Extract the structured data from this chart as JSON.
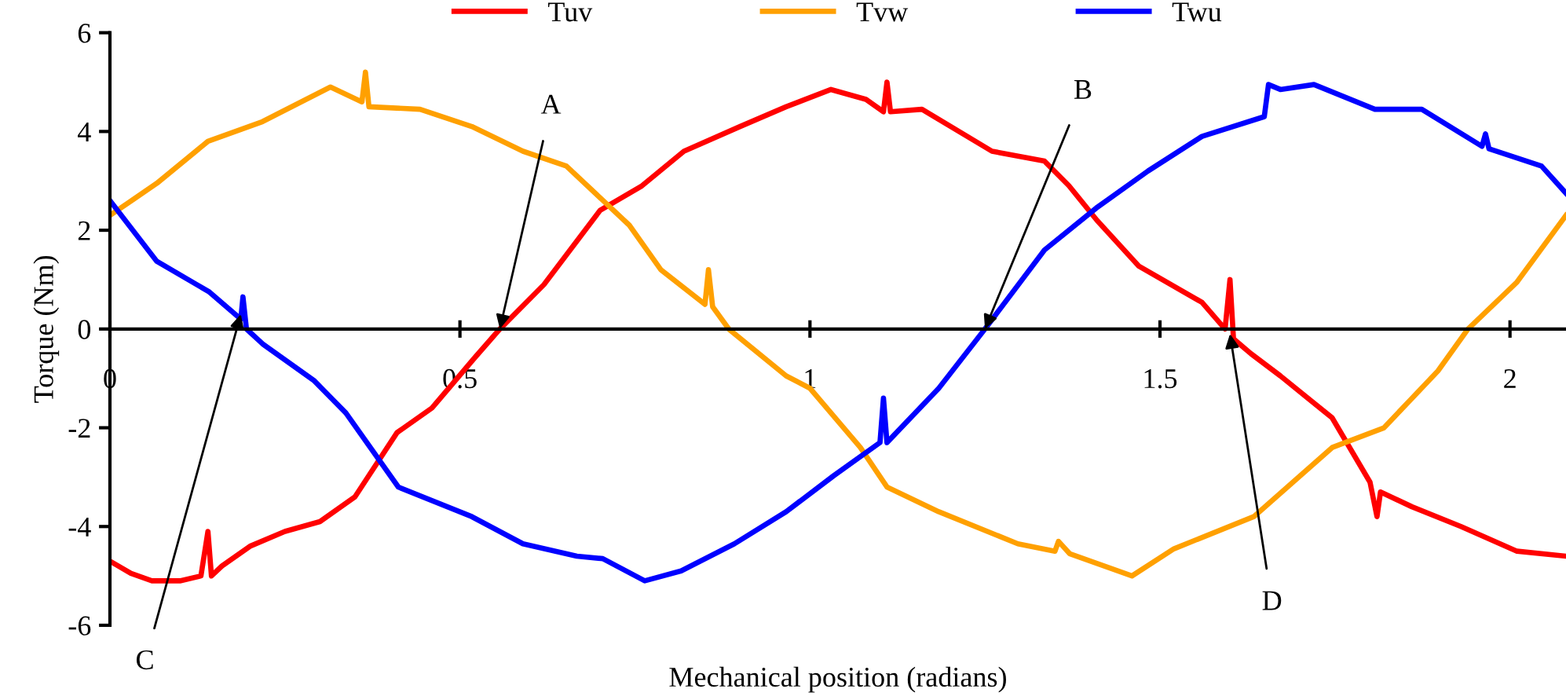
{
  "chart_data": {
    "type": "line",
    "xlabel": "Mechanical position (radians)",
    "ylabel": "Torque (Nm)",
    "xlim": [
      0,
      2.08
    ],
    "xticks": [
      0,
      0.5,
      1,
      1.5,
      2
    ],
    "ylim": [
      -6,
      6
    ],
    "yticks": [
      -6,
      -4,
      -2,
      0,
      2,
      4,
      6
    ],
    "grid": false,
    "legend": "top",
    "marker": "none",
    "line_style": "solid",
    "series": [
      {
        "name": "Tuv",
        "color": "#ff0000",
        "x": [
          0,
          0.03,
          0.06,
          0.1,
          0.13,
          0.14,
          0.145,
          0.16,
          0.2,
          0.25,
          0.3,
          0.35,
          0.41,
          0.46,
          0.52,
          0.557,
          0.62,
          0.7,
          0.76,
          0.82,
          0.9,
          0.966,
          1.03,
          1.08,
          1.105,
          1.11,
          1.115,
          1.16,
          1.26,
          1.335,
          1.37,
          1.41,
          1.47,
          1.56,
          1.593,
          1.6,
          1.605,
          1.63,
          1.672,
          1.746,
          1.8,
          1.81,
          1.815,
          1.86,
          1.93,
          2.01,
          2.08
        ],
        "values": [
          -4.7,
          -4.95,
          -5.1,
          -5.1,
          -5.0,
          -4.1,
          -5.0,
          -4.8,
          -4.4,
          -4.1,
          -3.9,
          -3.4,
          -2.1,
          -1.6,
          -0.6,
          0,
          0.9,
          2.4,
          2.9,
          3.6,
          4.1,
          4.5,
          4.85,
          4.65,
          4.4,
          5.0,
          4.4,
          4.45,
          3.6,
          3.4,
          2.9,
          2.2,
          1.27,
          0.54,
          0,
          1.0,
          -0.2,
          -0.5,
          -0.95,
          -1.8,
          -3.1,
          -3.8,
          -3.3,
          -3.6,
          -4.0,
          -4.5,
          -4.6
        ]
      },
      {
        "name": "Tvw",
        "color": "#ffa000",
        "x": [
          0,
          0.067,
          0.14,
          0.218,
          0.315,
          0.36,
          0.365,
          0.37,
          0.443,
          0.517,
          0.59,
          0.652,
          0.742,
          0.787,
          0.85,
          0.855,
          0.861,
          0.884,
          0.966,
          1.0,
          1.072,
          1.11,
          1.184,
          1.297,
          1.35,
          1.355,
          1.371,
          1.46,
          1.52,
          1.634,
          1.746,
          1.82,
          1.897,
          1.94,
          2.01,
          2.08
        ],
        "values": [
          2.3,
          2.95,
          3.8,
          4.2,
          4.9,
          4.6,
          5.2,
          4.5,
          4.45,
          4.1,
          3.6,
          3.3,
          2.1,
          1.2,
          0.5,
          1.2,
          0.45,
          0,
          -0.95,
          -1.2,
          -2.4,
          -3.2,
          -3.7,
          -4.35,
          -4.5,
          -4.3,
          -4.55,
          -5.0,
          -4.45,
          -3.8,
          -2.4,
          -2.0,
          -0.85,
          0,
          0.95,
          2.3
        ]
      },
      {
        "name": "Twu",
        "color": "#0000ff",
        "x": [
          0,
          0.067,
          0.142,
          0.187,
          0.19,
          0.195,
          0.218,
          0.292,
          0.337,
          0.412,
          0.517,
          0.59,
          0.667,
          0.704,
          0.764,
          0.816,
          0.892,
          0.966,
          1.034,
          1.1,
          1.105,
          1.11,
          1.184,
          1.25,
          1.335,
          1.409,
          1.483,
          1.56,
          1.649,
          1.655,
          1.672,
          1.72,
          1.807,
          1.874,
          1.96,
          1.965,
          1.97,
          2.045,
          2.08
        ],
        "values": [
          2.6,
          1.37,
          0.75,
          0.2,
          0.65,
          0.0,
          -0.3,
          -1.05,
          -1.7,
          -3.2,
          -3.8,
          -4.35,
          -4.6,
          -4.65,
          -5.1,
          -4.9,
          -4.35,
          -3.7,
          -2.97,
          -2.3,
          -1.4,
          -2.3,
          -1.2,
          0,
          1.6,
          2.45,
          3.2,
          3.9,
          4.3,
          4.95,
          4.85,
          4.95,
          4.45,
          4.45,
          3.7,
          3.95,
          3.65,
          3.3,
          2.75
        ]
      }
    ],
    "annotations": [
      {
        "text": "A",
        "x": 0.557,
        "y": 0
      },
      {
        "text": "B",
        "x": 1.25,
        "y": 0
      },
      {
        "text": "C",
        "x": 0.187,
        "y": 0.3
      },
      {
        "text": "D",
        "x": 1.6,
        "y": -0.1
      }
    ]
  }
}
